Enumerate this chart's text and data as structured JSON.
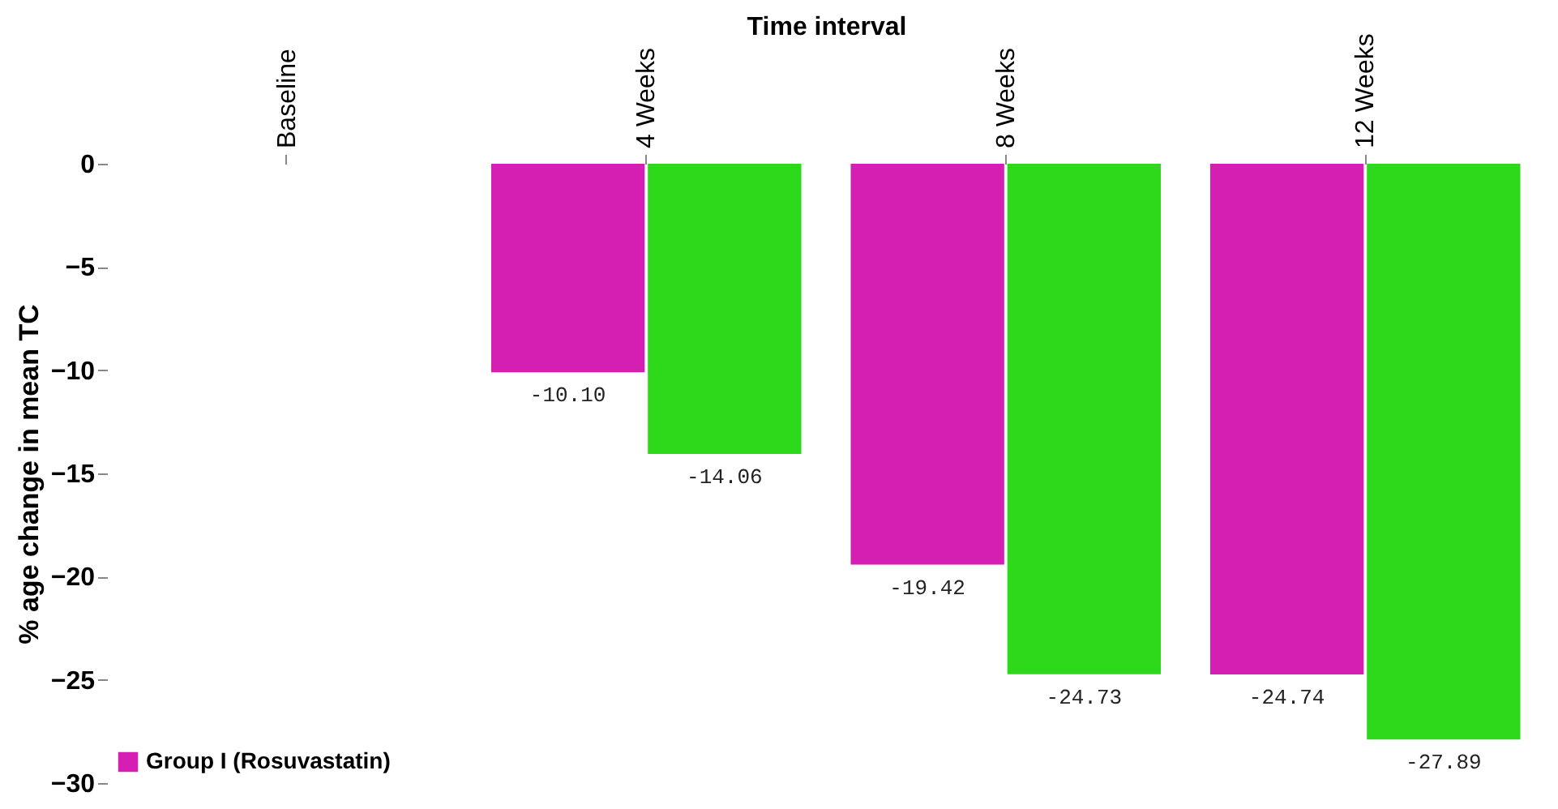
{
  "chart_data": {
    "type": "bar",
    "xlabel": "Time interval",
    "ylabel": "% age change in mean TC",
    "categories": [
      "Baseline",
      "4 Weeks",
      "8 Weeks",
      "12 Weeks"
    ],
    "series": [
      {
        "name": "Group I (Rosuvastatin)",
        "color": "#d41fb2",
        "values": [
          null,
          -10.1,
          -19.42,
          -24.74
        ],
        "value_labels": [
          null,
          "-10.10",
          "-19.42",
          "-24.74"
        ]
      },
      {
        "color": "#2ed81a",
        "values": [
          null,
          -14.06,
          -24.73,
          -27.89
        ],
        "value_labels": [
          null,
          "-14.06",
          "-24.73",
          "-27.89"
        ]
      }
    ],
    "ylim": [
      -30,
      0
    ],
    "yticks": [
      -30,
      -25,
      -20,
      -15,
      -10,
      -5,
      0
    ],
    "grid": false,
    "legend": "bottom left"
  }
}
